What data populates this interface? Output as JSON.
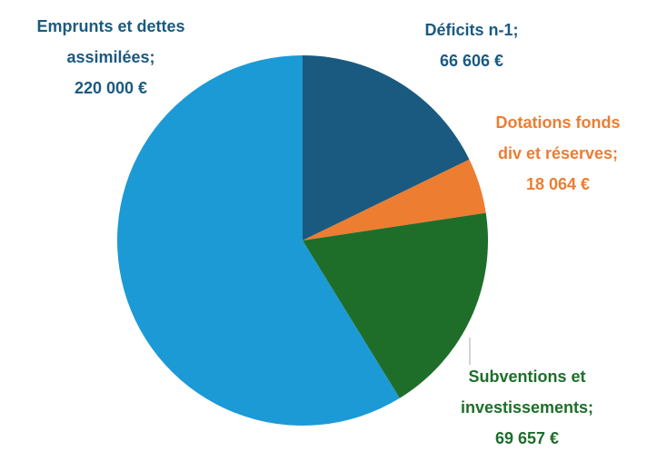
{
  "chart_data": {
    "type": "pie",
    "categories": [
      "Déficits n-1",
      "Dotations fonds div et réserves",
      "Subventions et investissements",
      "Emprunts et dettes assimilées"
    ],
    "values": [
      66606,
      18064,
      69657,
      220000
    ],
    "value_labels": [
      "66 606 €",
      "18 064 €",
      "69 657 €",
      "220 000 €"
    ],
    "separator": ";",
    "colors": [
      "#1b5a80",
      "#ed7d31",
      "#1e6e2a",
      "#1c9ad6"
    ],
    "label_colors": [
      "#1b5a80",
      "#ed7d31",
      "#1e6e2a",
      "#1b5a80"
    ]
  }
}
